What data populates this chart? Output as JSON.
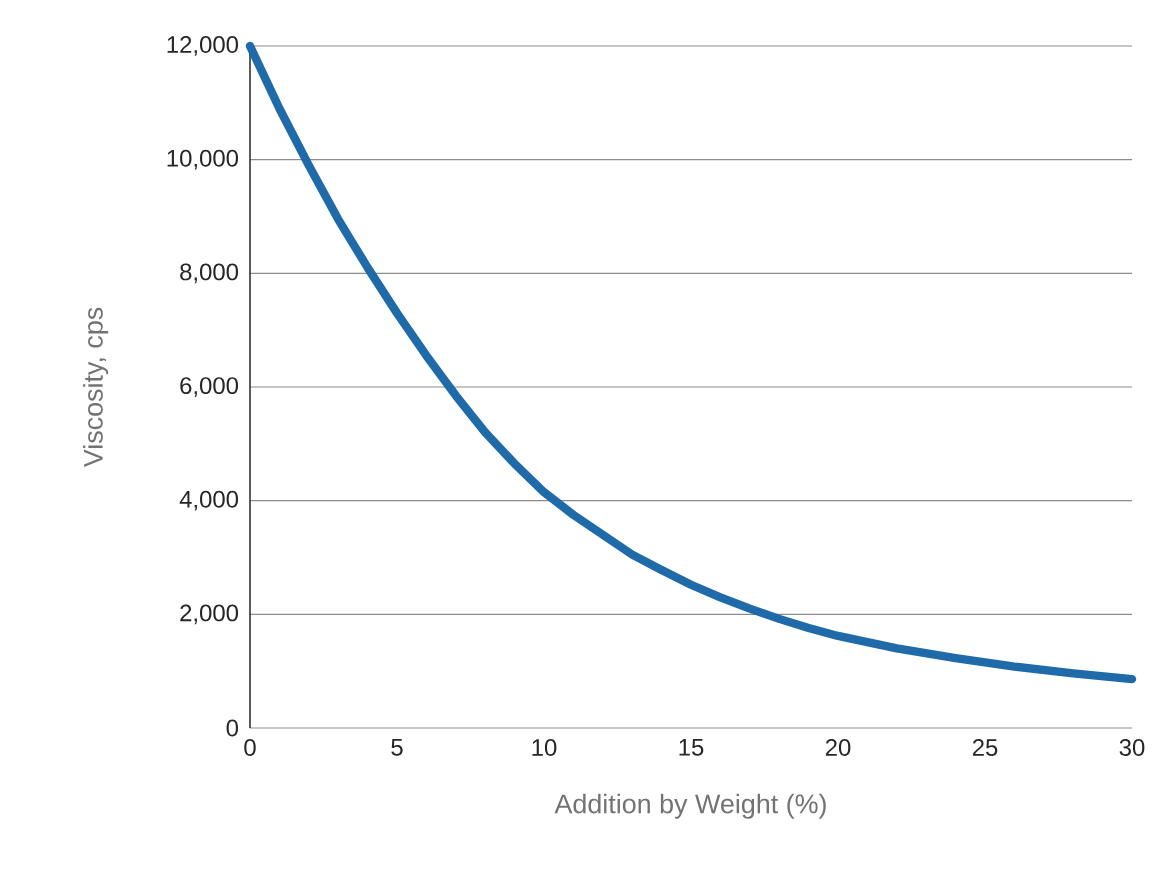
{
  "chart_data": {
    "type": "line",
    "xlabel": "Addition by Weight (%)",
    "ylabel": "Viscosity, cps",
    "xlim": [
      0,
      30
    ],
    "ylim": [
      0,
      12000
    ],
    "xticks": [
      0,
      5,
      10,
      15,
      20,
      25,
      30
    ],
    "yticks": [
      {
        "value": 0,
        "label": "0"
      },
      {
        "value": 2000,
        "label": "2,000"
      },
      {
        "value": 4000,
        "label": "4,000"
      },
      {
        "value": 6000,
        "label": "6,000"
      },
      {
        "value": 8000,
        "label": "8,000"
      },
      {
        "value": 10000,
        "label": "10,000"
      },
      {
        "value": 12000,
        "label": "12,000"
      }
    ],
    "grid": "y",
    "marker": "none",
    "line_style": "solid",
    "series": [
      {
        "color": "#1f6aa8",
        "x": [
          0,
          1,
          2,
          3,
          4,
          5,
          6,
          7,
          8,
          9,
          10,
          11,
          12,
          13,
          14,
          15,
          16,
          17,
          18,
          19,
          20,
          22,
          24,
          26,
          28,
          30
        ],
        "values": [
          12000,
          10900,
          9900,
          8950,
          8100,
          7300,
          6550,
          5850,
          5200,
          4650,
          4150,
          3750,
          3400,
          3050,
          2780,
          2520,
          2300,
          2100,
          1920,
          1760,
          1620,
          1400,
          1230,
          1080,
          960,
          860
        ]
      }
    ]
  }
}
